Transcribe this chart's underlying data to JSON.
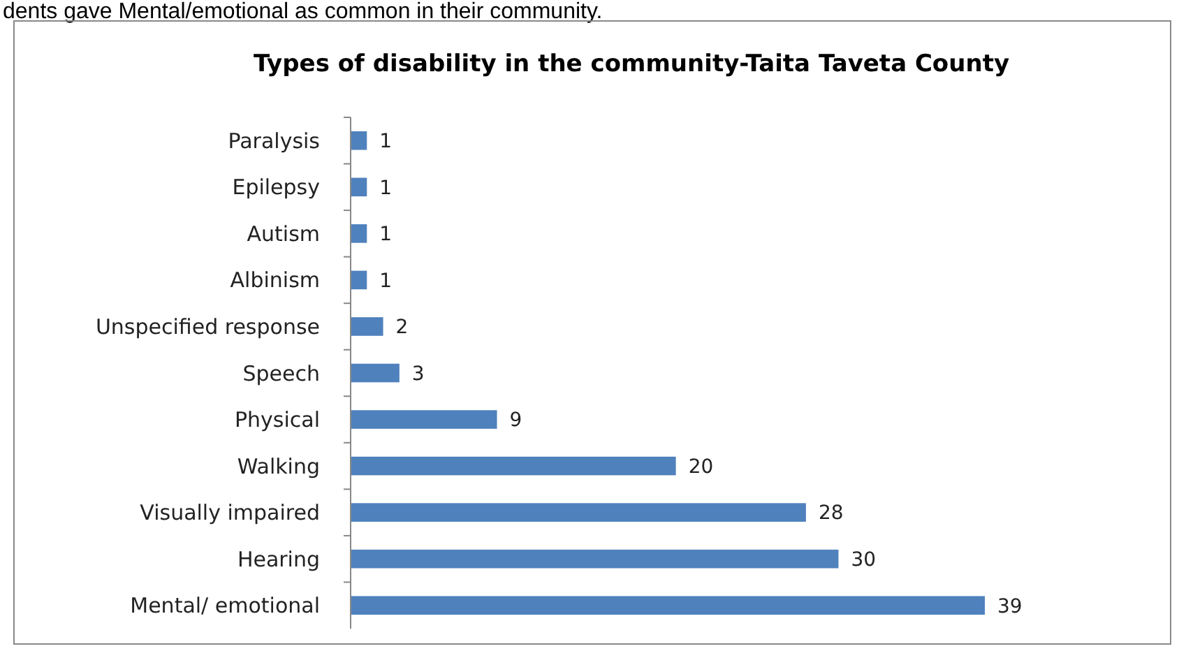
{
  "chart_data": {
    "type": "bar",
    "orientation": "horizontal",
    "title": "Types of disability in the community-Taita Taveta County",
    "annotations": [
      "dents gave Mental/emotional as common in their community."
    ],
    "categories": [
      "Paralysis",
      "Epilepsy",
      "Autism",
      "Albinism",
      "Unspecified response",
      "Speech",
      "Physical",
      "Walking",
      "Visually impaired",
      "Hearing",
      "Mental/ emotional"
    ],
    "values": [
      1,
      1,
      1,
      1,
      2,
      3,
      9,
      20,
      28,
      30,
      39
    ],
    "color": "#4f81bd",
    "data_labels": true
  }
}
